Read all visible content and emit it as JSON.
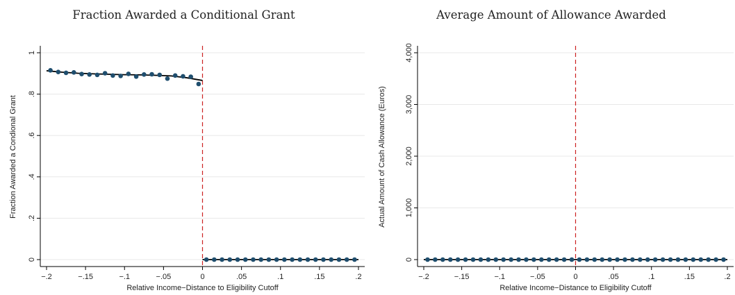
{
  "chart_data": [
    {
      "type": "scatter",
      "title": "Fraction Awarded a Conditional Grant",
      "xlabel": "Relative Income−Distance to Eligibility Cutoff",
      "ylabel": "Fraction Awarded a Condional Grant",
      "xlim": [
        -0.2,
        0.2
      ],
      "ylim": [
        0,
        1
      ],
      "xticks": [
        -0.2,
        -0.15,
        -0.1,
        -0.05,
        0,
        0.05,
        0.1,
        0.15,
        0.2
      ],
      "xtick_labels": [
        "−.2",
        "−.15",
        "−.1",
        "−.05",
        "0",
        ".05",
        ".1",
        ".15",
        ".2"
      ],
      "yticks": [
        0,
        0.2,
        0.4,
        0.6,
        0.8,
        1
      ],
      "ytick_labels": [
        "0",
        ".2",
        ".4",
        ".6",
        ".8",
        "1"
      ],
      "grid": true,
      "cutoff": 0,
      "colors": {
        "marker": "#1f4e6e",
        "fit": "#000000",
        "cutoff": "#cc2222",
        "grid": "#e8e8e8"
      },
      "series": [
        {
          "x": [
            -0.195,
            -0.185,
            -0.175,
            -0.165,
            -0.155,
            -0.145,
            -0.135,
            -0.125,
            -0.115,
            -0.105,
            -0.095,
            -0.085,
            -0.075,
            -0.065,
            -0.055,
            -0.045,
            -0.035,
            -0.025,
            -0.015,
            -0.005,
            0.005,
            0.015,
            0.025,
            0.035,
            0.045,
            0.055,
            0.065,
            0.075,
            0.085,
            0.095,
            0.105,
            0.115,
            0.125,
            0.135,
            0.145,
            0.155,
            0.165,
            0.175,
            0.185,
            0.195
          ],
          "y": [
            0.915,
            0.907,
            0.903,
            0.905,
            0.897,
            0.895,
            0.893,
            0.901,
            0.89,
            0.888,
            0.898,
            0.885,
            0.895,
            0.896,
            0.893,
            0.875,
            0.89,
            0.886,
            0.884,
            0.849,
            0,
            0,
            0,
            0,
            0,
            0,
            0,
            0,
            0,
            0,
            0,
            0,
            0,
            0,
            0,
            0,
            0,
            0,
            0,
            0
          ]
        }
      ],
      "fit_left": {
        "x": [
          -0.2,
          -0.18,
          -0.16,
          -0.14,
          -0.12,
          -0.1,
          -0.08,
          -0.06,
          -0.04,
          -0.02,
          0
        ],
        "y": [
          0.913,
          0.906,
          0.901,
          0.898,
          0.896,
          0.894,
          0.893,
          0.891,
          0.888,
          0.879,
          0.866
        ]
      },
      "fit_right": {
        "x": [
          0,
          0.2
        ],
        "y": [
          0,
          0
        ]
      }
    },
    {
      "type": "scatter",
      "title": "Average Amount of Allowance Awarded",
      "xlabel": "Relative Income−Distance to Eligibility Cutoff",
      "ylabel": "Actual Amount of Cash Allowance (Euros)",
      "xlim": [
        -0.2,
        0.2
      ],
      "ylim": [
        0,
        4000
      ],
      "xticks": [
        -0.2,
        -0.15,
        -0.1,
        -0.05,
        0,
        0.05,
        0.1,
        0.15,
        0.2
      ],
      "xtick_labels": [
        "−.2",
        "−.15",
        "−.1",
        "−.05",
        "0",
        ".05",
        ".1",
        ".15",
        ".2"
      ],
      "yticks": [
        0,
        1000,
        2000,
        3000,
        4000
      ],
      "ytick_labels": [
        "0",
        "1,000",
        "2,000",
        "3,000",
        "4,000"
      ],
      "grid": true,
      "cutoff": 0,
      "colors": {
        "marker": "#1f4e6e",
        "fit": "#000000",
        "cutoff": "#cc2222",
        "grid": "#e8e8e8"
      },
      "series": [
        {
          "x": [
            -0.195,
            -0.185,
            -0.175,
            -0.165,
            -0.155,
            -0.145,
            -0.135,
            -0.125,
            -0.115,
            -0.105,
            -0.095,
            -0.085,
            -0.075,
            -0.065,
            -0.055,
            -0.045,
            -0.035,
            -0.025,
            -0.015,
            -0.005,
            0.005,
            0.015,
            0.025,
            0.035,
            0.045,
            0.055,
            0.065,
            0.075,
            0.085,
            0.095,
            0.105,
            0.115,
            0.125,
            0.135,
            0.145,
            0.155,
            0.165,
            0.175,
            0.185,
            0.195
          ],
          "y": [
            0,
            0,
            0,
            0,
            0,
            0,
            0,
            0,
            0,
            0,
            0,
            0,
            0,
            0,
            0,
            0,
            0,
            0,
            0,
            0,
            0,
            0,
            0,
            0,
            0,
            0,
            0,
            0,
            0,
            0,
            0,
            0,
            0,
            0,
            0,
            0,
            0,
            0,
            0,
            0
          ]
        }
      ],
      "fit_left": {
        "x": [
          -0.2,
          0
        ],
        "y": [
          0,
          0
        ]
      },
      "fit_right": {
        "x": [
          0,
          0.2
        ],
        "y": [
          0,
          0
        ]
      }
    }
  ]
}
